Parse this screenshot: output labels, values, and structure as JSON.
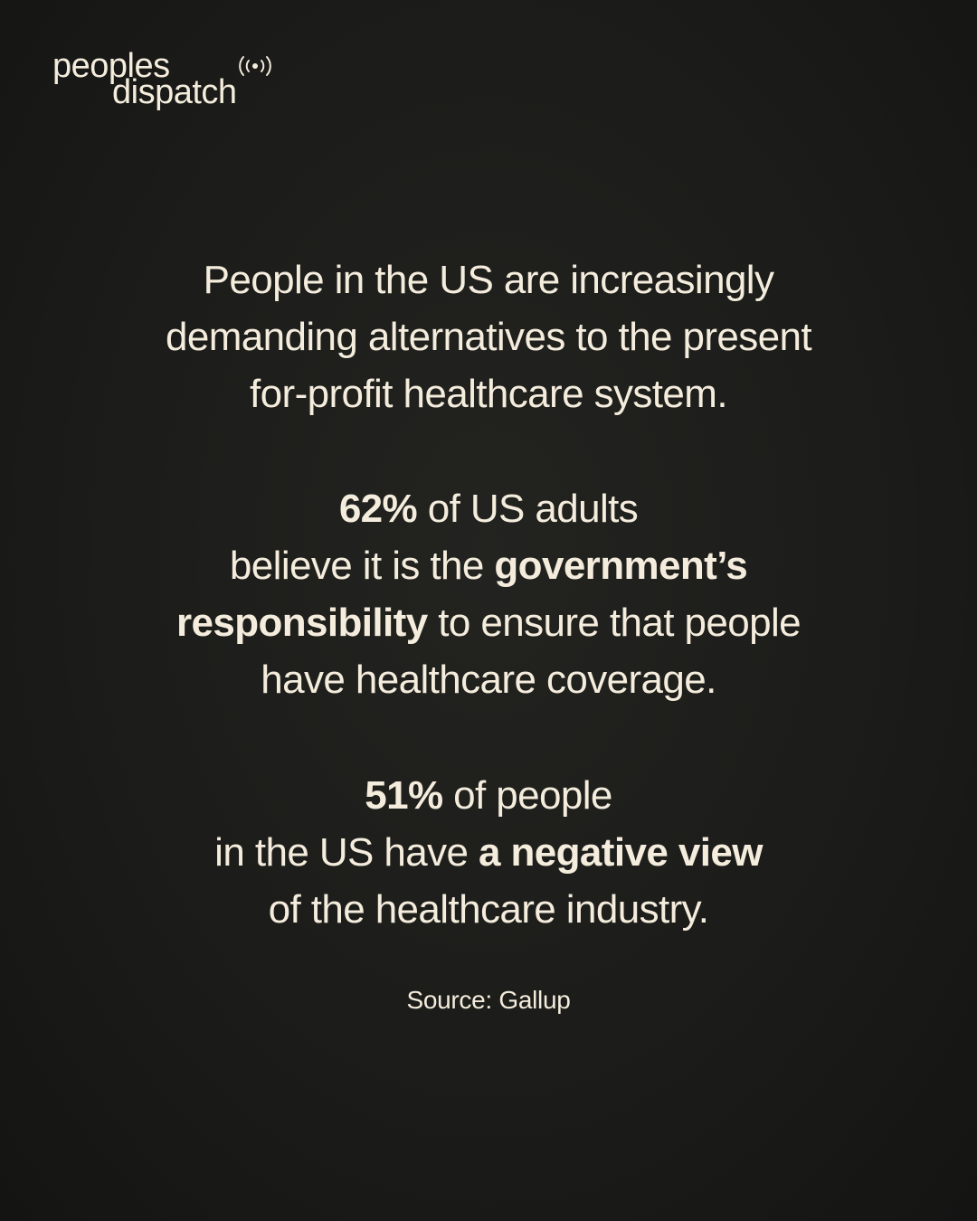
{
  "logo": {
    "line1": "peoples",
    "line2": "dispatch"
  },
  "paragraphs": [
    {
      "lines": [
        [
          {
            "text": "People in the US are increasingly"
          }
        ],
        [
          {
            "text": "demanding alternatives to the present"
          }
        ],
        [
          {
            "text": "for-profit healthcare system."
          }
        ]
      ]
    },
    {
      "lines": [
        [
          {
            "text": "62%",
            "bold": true
          },
          {
            "text": " of US adults"
          }
        ],
        [
          {
            "text": "believe it is the "
          },
          {
            "text": "government’s",
            "bold": true
          }
        ],
        [
          {
            "text": "responsibility",
            "bold": true
          },
          {
            "text": " to ensure that people"
          }
        ],
        [
          {
            "text": "have healthcare coverage."
          }
        ]
      ]
    },
    {
      "lines": [
        [
          {
            "text": "51%",
            "bold": true
          },
          {
            "text": " of people"
          }
        ],
        [
          {
            "text": "in the US have "
          },
          {
            "text": "a negative view",
            "bold": true
          }
        ],
        [
          {
            "text": "of the healthcare industry."
          }
        ]
      ]
    }
  ],
  "source": "Source: Gallup"
}
